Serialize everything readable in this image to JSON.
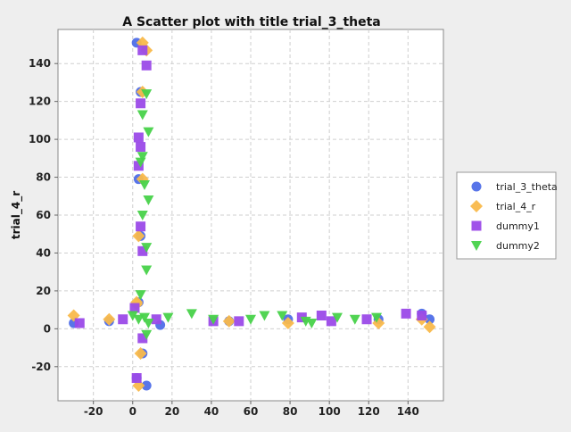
{
  "chart_data": {
    "type": "scatter",
    "title": "A Scatter plot with title trial_3_theta",
    "xlabel": "",
    "ylabel": "trial_4_r",
    "xlim": [
      -38,
      158
    ],
    "ylim": [
      -38,
      158
    ],
    "xticks": [
      -20,
      0,
      20,
      40,
      60,
      80,
      100,
      120,
      140
    ],
    "yticks": [
      -20,
      0,
      20,
      40,
      60,
      80,
      100,
      120,
      140
    ],
    "grid": true,
    "legend_position": "right",
    "series": [
      {
        "name": "trial_3_theta",
        "color": "#4f6ee8",
        "marker": "circle",
        "points": [
          [
            2,
            151
          ],
          [
            4,
            125
          ],
          [
            3,
            79
          ],
          [
            4,
            49
          ],
          [
            3,
            14
          ],
          [
            5,
            -13
          ],
          [
            7,
            -30
          ],
          [
            2,
            -26
          ],
          [
            -30,
            3
          ],
          [
            -12,
            4
          ],
          [
            14,
            2
          ],
          [
            79,
            5
          ],
          [
            49,
            4
          ],
          [
            125,
            5
          ],
          [
            151,
            5
          ],
          [
            147,
            8
          ]
        ]
      },
      {
        "name": "trial_4_r",
        "color": "#f9b94b",
        "marker": "diamond",
        "points": [
          [
            5,
            151
          ],
          [
            7,
            147
          ],
          [
            5,
            125
          ],
          [
            5,
            79
          ],
          [
            3,
            49
          ],
          [
            2,
            14
          ],
          [
            4,
            -13
          ],
          [
            3,
            -30
          ],
          [
            -30,
            7
          ],
          [
            -12,
            5
          ],
          [
            79,
            3
          ],
          [
            49,
            4
          ],
          [
            125,
            3
          ],
          [
            151,
            1
          ],
          [
            147,
            5
          ],
          [
            2,
            13
          ]
        ]
      },
      {
        "name": "dummy1",
        "color": "#9b4ae8",
        "marker": "square",
        "points": [
          [
            5,
            147
          ],
          [
            7,
            139
          ],
          [
            4,
            119
          ],
          [
            3,
            101
          ],
          [
            4,
            96
          ],
          [
            3,
            86
          ],
          [
            4,
            54
          ],
          [
            5,
            41
          ],
          [
            1,
            11
          ],
          [
            5,
            -5
          ],
          [
            2,
            -26
          ],
          [
            -5,
            5
          ],
          [
            -27,
            3
          ],
          [
            12,
            5
          ],
          [
            41,
            4
          ],
          [
            54,
            4
          ],
          [
            86,
            6
          ],
          [
            96,
            7
          ],
          [
            101,
            4
          ],
          [
            119,
            5
          ],
          [
            139,
            8
          ],
          [
            147,
            7
          ]
        ]
      },
      {
        "name": "dummy2",
        "color": "#48d24a",
        "marker": "triangle-down",
        "points": [
          [
            7,
            124
          ],
          [
            5,
            113
          ],
          [
            8,
            104
          ],
          [
            5,
            91
          ],
          [
            4,
            88
          ],
          [
            6,
            76
          ],
          [
            8,
            68
          ],
          [
            5,
            60
          ],
          [
            7,
            43
          ],
          [
            7,
            31
          ],
          [
            4,
            18
          ],
          [
            0,
            7
          ],
          [
            6,
            6
          ],
          [
            8,
            3
          ],
          [
            7,
            -3
          ],
          [
            3,
            5
          ],
          [
            18,
            6
          ],
          [
            30,
            8
          ],
          [
            41,
            5
          ],
          [
            60,
            5
          ],
          [
            67,
            7
          ],
          [
            76,
            7
          ],
          [
            88,
            4
          ],
          [
            91,
            3
          ],
          [
            104,
            6
          ],
          [
            113,
            5
          ],
          [
            124,
            6
          ]
        ]
      }
    ]
  }
}
